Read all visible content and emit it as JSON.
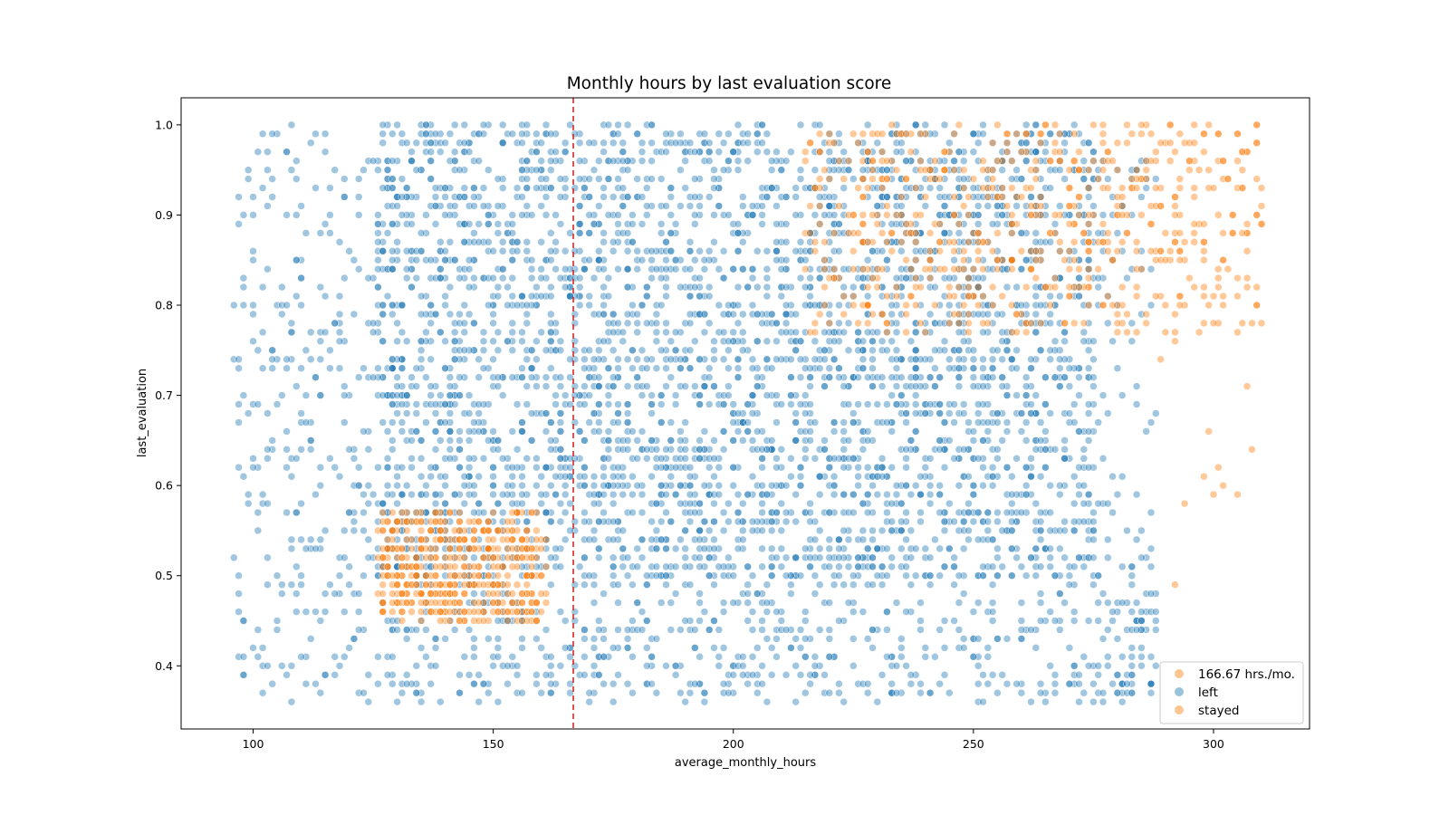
{
  "chart_data": {
    "type": "scatter",
    "title": "Monthly hours by last evaluation score",
    "xlabel": "average_monthly_hours",
    "ylabel": "last_evaluation",
    "xlim": [
      85,
      320
    ],
    "ylim": [
      0.33,
      1.03
    ],
    "x_ticks": [
      100,
      150,
      200,
      250,
      300
    ],
    "y_ticks": [
      0.4,
      0.5,
      0.6,
      0.7,
      0.8,
      0.9,
      1.0
    ],
    "x_tick_labels": [
      "100",
      "150",
      "200",
      "250",
      "300"
    ],
    "y_tick_labels": [
      "0.4",
      "0.5",
      "0.6",
      "0.7",
      "0.8",
      "0.9",
      "1.0"
    ],
    "grid": false,
    "legend_position": "lower-right",
    "reference_line": {
      "x": 166.67,
      "label": "166.67 hrs./mo.",
      "color": "#d62728",
      "style": "dashed"
    },
    "series": [
      {
        "name": "left",
        "color": "#1f77b4"
      },
      {
        "name": "stayed",
        "color": "#ff7f0e"
      }
    ],
    "legend": [
      "166.67 hrs./mo.",
      "left",
      "stayed"
    ],
    "generation_note": "dense point clouds reproduced procedurally; clusters listed below",
    "clusters": [
      {
        "series": "left",
        "x": [
          126,
          275
        ],
        "y": [
          0.49,
          1.0
        ],
        "count": 3600
      },
      {
        "series": "left",
        "x": [
          96,
          130
        ],
        "y": [
          0.36,
          1.0
        ],
        "count": 330
      },
      {
        "series": "left",
        "x": [
          128,
          288
        ],
        "y": [
          0.36,
          0.48
        ],
        "count": 520
      },
      {
        "series": "left",
        "x": [
          275,
          288
        ],
        "y": [
          0.36,
          0.98
        ],
        "count": 110
      },
      {
        "series": "stayed",
        "x": [
          126,
          161
        ],
        "y": [
          0.45,
          0.57
        ],
        "count": 480
      },
      {
        "series": "stayed",
        "x": [
          215,
          275
        ],
        "y": [
          0.77,
          1.0
        ],
        "count": 420
      },
      {
        "series": "stayed",
        "x": [
          276,
          310
        ],
        "y": [
          0.77,
          1.0
        ],
        "count": 230
      },
      {
        "series": "stayed",
        "x": [
          286,
          310
        ],
        "y": [
          0.48,
          0.76
        ],
        "count": 12
      }
    ]
  }
}
